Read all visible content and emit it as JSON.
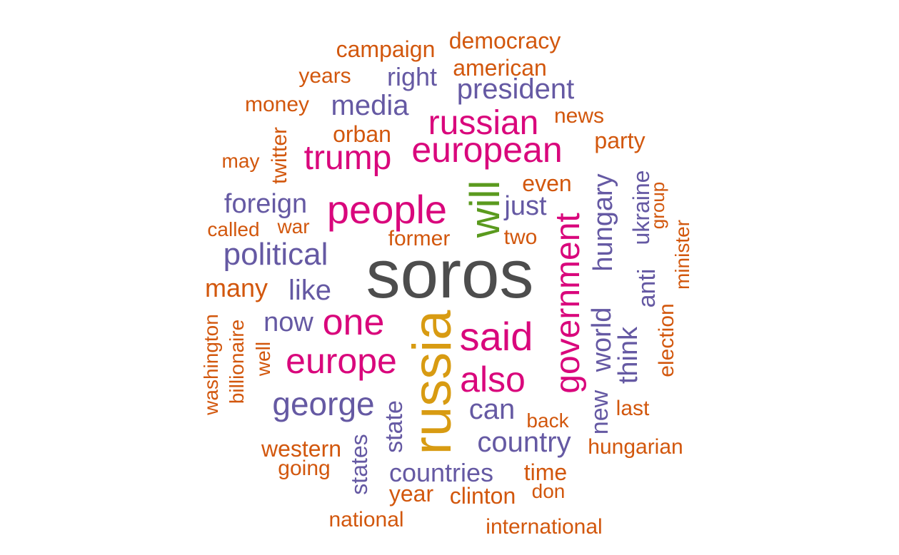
{
  "colors": {
    "gray": "#4d4d4d",
    "gold": "#d89b12",
    "green": "#5a9a1e",
    "pink": "#d9077c",
    "purple": "#6559a3",
    "orange": "#d2570d"
  },
  "words": {
    "soros": "soros",
    "russia": "russia",
    "will": "will",
    "people": "people",
    "european": "european",
    "government": "government",
    "said": "said",
    "russian": "russian",
    "trump": "trump",
    "one": "one",
    "europe": "europe",
    "also": "also",
    "political": "political",
    "george": "george",
    "president": "president",
    "country": "country",
    "media": "media",
    "hungary": "hungary",
    "like": "like",
    "foreign": "foreign",
    "can": "can",
    "just": "just",
    "now": "now",
    "think": "think",
    "world": "world",
    "countries": "countries",
    "right": "right",
    "ukraine": "ukraine",
    "anti": "anti",
    "new": "new",
    "state": "state",
    "states": "states",
    "democracy": "democracy",
    "campaign": "campaign",
    "american": "american",
    "years": "years",
    "money": "money",
    "news": "news",
    "orban": "orban",
    "party": "party",
    "twitter": "twitter",
    "may": "may",
    "even": "even",
    "group": "group",
    "called": "called",
    "war": "war",
    "former": "former",
    "two": "two",
    "minister": "minister",
    "many": "many",
    "washington": "washington",
    "billionaire": "billionaire",
    "election": "election",
    "well": "well",
    "last": "last",
    "back": "back",
    "western": "western",
    "hungarian": "hungarian",
    "going": "going",
    "time": "time",
    "year": "year",
    "clinton": "clinton",
    "don": "don",
    "national": "national",
    "international": "international"
  }
}
